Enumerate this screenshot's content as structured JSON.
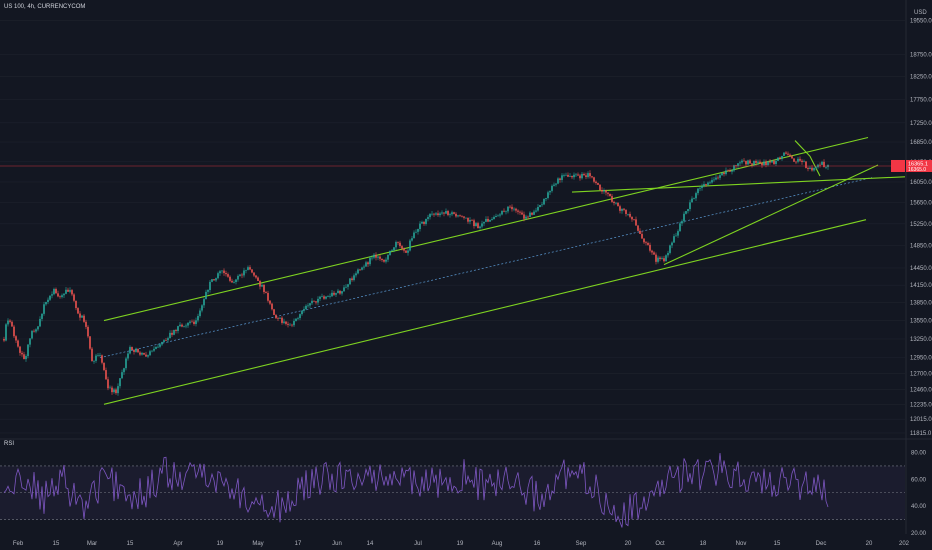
{
  "header": {
    "symbol": "US 100, 4h, CURRENCYCOM"
  },
  "price_pane": {
    "currency": "USD",
    "y_ticks": [
      11815.0,
      12015.0,
      12235.0,
      12460.0,
      12700.0,
      12950.0,
      13250.0,
      13550.0,
      13850.0,
      14150.0,
      14450.0,
      14850.0,
      15250.0,
      15650.0,
      16050.0,
      16450.0,
      16850.0,
      17250.0,
      17750.0,
      18250.0,
      18750.0,
      19550.0
    ],
    "current_price": {
      "value": "16365.1",
      "sub": "16365.0",
      "color": "#f23645"
    }
  },
  "rsi_pane": {
    "label": "RSI",
    "y_ticks": [
      20.0,
      40.0,
      60.0,
      80.0
    ],
    "upper_band": 70,
    "lower_band": 30,
    "line_color": "#7e57c2"
  },
  "x_ticks": [
    "Feb",
    "15",
    "Mar",
    "15",
    "Apr",
    "19",
    "May",
    "17",
    "Jun",
    "14",
    "Jul",
    "19",
    "Aug",
    "16",
    "Sep",
    "20",
    "Oct",
    "18",
    "Nov",
    "15",
    "Dec",
    "20",
    "202"
  ],
  "colors": {
    "background": "#131722",
    "up": "#26a69a",
    "down": "#ef5350",
    "channel": "#7ed321",
    "midline": "#5b9bd5"
  },
  "chart_data": {
    "type": "candlestick",
    "title": "",
    "series": [
      {
        "name": "",
        "anchors_t": [
          0,
          3,
          8,
          14,
          20,
          28,
          34,
          40,
          50,
          57,
          66,
          74,
          81,
          88,
          96,
          104,
          112,
          126,
          142,
          158,
          175,
          193,
          205,
          216,
          228,
          246,
          262,
          270,
          286,
          303,
          320,
          338,
          354,
          370,
          380,
          392,
          402,
          410,
          426,
          442,
          458,
          474,
          490,
          506,
          522,
          538,
          554,
          566,
          574,
          584,
          600,
          618,
          630,
          640,
          652,
          660,
          668,
          680,
          692,
          706,
          722,
          740,
          756,
          770,
          782,
          790,
          798,
          806,
          812,
          818,
          824
        ],
        "anchors_price": [
          13250,
          13600,
          13450,
          13100,
          12900,
          13350,
          13450,
          13800,
          14050,
          13950,
          14100,
          13650,
          13550,
          12900,
          13000,
          12500,
          12400,
          13100,
          13000,
          13200,
          13450,
          13550,
          14150,
          14400,
          14200,
          14450,
          14000,
          13650,
          13450,
          13800,
          13950,
          14050,
          14400,
          14650,
          14550,
          14900,
          14700,
          15100,
          15400,
          15450,
          15400,
          15200,
          15400,
          15550,
          15350,
          15650,
          16100,
          16200,
          16150,
          16200,
          15850,
          15500,
          15300,
          14950,
          14600,
          14600,
          14900,
          15400,
          15850,
          16050,
          16250,
          16450,
          16400,
          16450,
          16650,
          16500,
          16450,
          16300,
          16350,
          16400,
          16365
        ]
      }
    ],
    "rsi": {
      "anchors_t": [
        0,
        20,
        40,
        60,
        80,
        100,
        120,
        140,
        160,
        180,
        200,
        220,
        240,
        260,
        280,
        300,
        320,
        340,
        360,
        380,
        400,
        420,
        440,
        460,
        480,
        500,
        520,
        540,
        560,
        580,
        600,
        620,
        640,
        660,
        680,
        700,
        720,
        740,
        760,
        780,
        800,
        820
      ],
      "anchors_value": [
        50,
        62,
        45,
        58,
        40,
        60,
        52,
        48,
        65,
        58,
        68,
        55,
        48,
        42,
        38,
        55,
        60,
        62,
        58,
        65,
        60,
        55,
        58,
        62,
        55,
        60,
        50,
        48,
        62,
        60,
        45,
        35,
        40,
        55,
        65,
        62,
        68,
        60,
        58,
        62,
        55,
        52
      ]
    },
    "ylim": [
      11815,
      19550
    ],
    "yscale": "log"
  }
}
